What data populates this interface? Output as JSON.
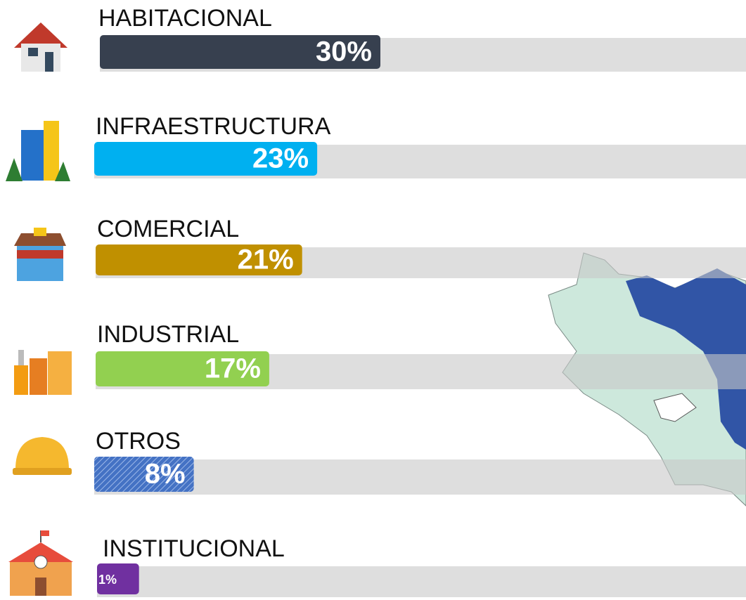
{
  "chart_data": {
    "type": "hbar",
    "categories": [
      "HABITACIONAL",
      "INFRAESTRUCTURA",
      "COMERCIAL",
      "INDUSTRIAL",
      "OTROS",
      "INSTITUCIONAL"
    ],
    "values": [
      30,
      23,
      21,
      17,
      8,
      1
    ],
    "value_labels": [
      "30%",
      "23%",
      "21%",
      "17%",
      "8%",
      "1%"
    ],
    "colors": [
      "#37404f",
      "#00b0f0",
      "#c09000",
      "#92d050",
      "#4472c4",
      "#7030a0"
    ]
  }
}
